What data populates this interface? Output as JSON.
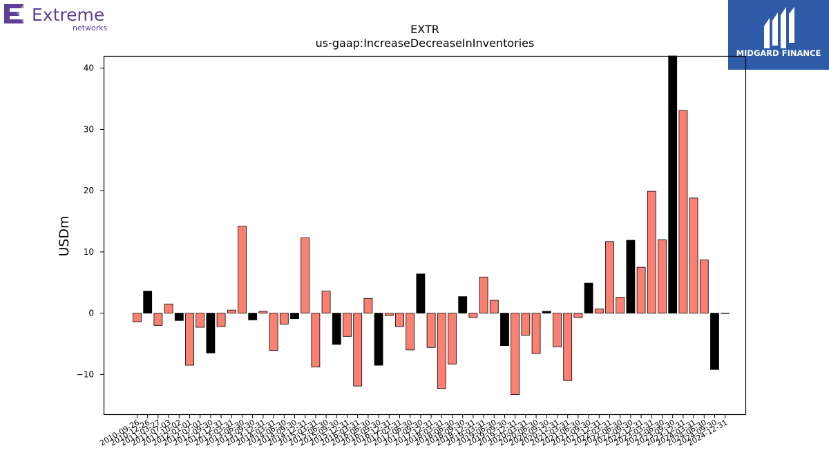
{
  "branding": {
    "left_logo_word": "Extreme",
    "left_logo_sub": "networks",
    "left_logo_color": "#5b3f98",
    "right_logo_name": "MIDGARD FINANCE",
    "right_logo_bg": "#2f5aa8"
  },
  "chart_data": {
    "type": "bar",
    "title": "EXTR",
    "subtitle": "us-gaap:IncreaseDecreaseInInventories",
    "xlabel": "",
    "ylabel": "USDm",
    "ylim": [
      -16.5,
      42
    ],
    "yticks": [
      -10,
      0,
      10,
      20,
      30,
      40
    ],
    "grid": false,
    "colors": {
      "positive_face": "#fa8072",
      "highlight_face": "#000000",
      "edge": "#000000"
    },
    "categories": [
      "2010-09-26",
      "2010-12-26",
      "2011-03-27",
      "2011-07-03",
      "2011-10-02",
      "2012-01-01",
      "2012-07-01",
      "2012-09-30",
      "2012-12-31",
      "2013-03-31",
      "2013-06-30",
      "2013-09-30",
      "2013-12-31",
      "2014-03-31",
      "2014-06-30",
      "2014-09-30",
      "2014-12-31",
      "2015-03-31",
      "2015-06-30",
      "2015-09-30",
      "2015-12-31",
      "2016-03-31",
      "2016-06-30",
      "2016-09-30",
      "2016-12-31",
      "2017-03-31",
      "2017-06-30",
      "2017-09-30",
      "2017-12-31",
      "2018-03-31",
      "2018-06-30",
      "2018-09-30",
      "2018-12-31",
      "2019-03-31",
      "2019-06-30",
      "2019-09-30",
      "2019-12-31",
      "2020-03-31",
      "2020-06-30",
      "2020-09-30",
      "2020-12-31",
      "2021-03-31",
      "2021-06-30",
      "2021-09-30",
      "2021-12-31",
      "2022-03-31",
      "2022-06-30",
      "2022-09-30",
      "2022-12-31",
      "2023-03-31",
      "2023-06-30",
      "2023-09-30",
      "2023-12-31",
      "2024-03-31",
      "2024-06-30",
      "2024-09-30",
      "2024-12-31"
    ],
    "values": [
      -1.4,
      3.6,
      -2.0,
      1.5,
      -1.2,
      -8.5,
      -2.3,
      -6.5,
      -2.2,
      0.5,
      14.2,
      -1.1,
      0.3,
      -6.1,
      -1.8,
      -0.9,
      12.3,
      -8.8,
      3.6,
      -5.1,
      -3.8,
      -11.9,
      2.4,
      -8.5,
      -0.4,
      -2.2,
      -6.0,
      6.4,
      -5.6,
      -12.3,
      -8.3,
      2.7,
      -0.7,
      5.9,
      2.1,
      -5.3,
      -13.3,
      -3.6,
      -6.6,
      0.3,
      -5.5,
      -11.0,
      -0.7,
      4.9,
      0.7,
      11.7,
      2.6,
      11.9,
      7.5,
      19.9,
      12.0,
      42.0,
      33.1,
      18.8,
      8.7,
      -9.2,
      0
    ],
    "highlighted": [
      1,
      4,
      7,
      11,
      15,
      19,
      23,
      27,
      31,
      35,
      39,
      43,
      47,
      51,
      55
    ]
  }
}
